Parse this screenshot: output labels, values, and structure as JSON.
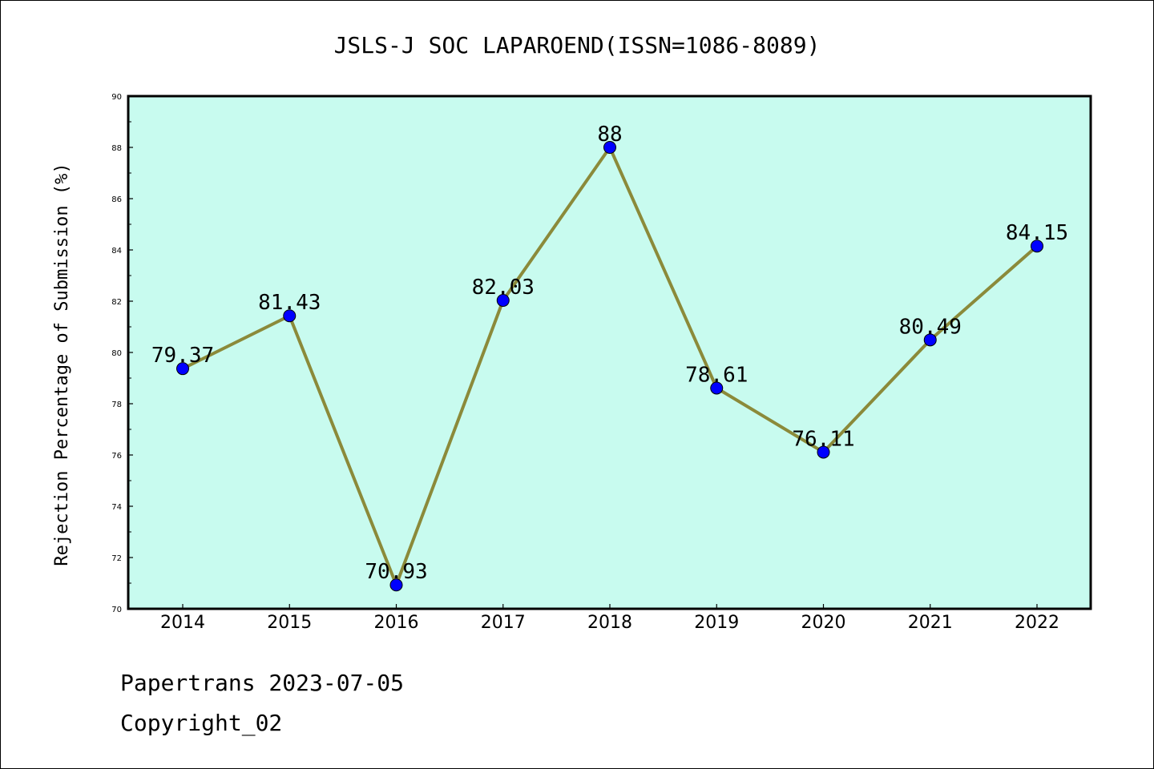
{
  "colors": {
    "plot_background": "#c8fbef",
    "line": "#8b8a3a",
    "marker": "#0000ff",
    "text": "#000000"
  },
  "footer": {
    "line1": "Papertrans 2023-07-05",
    "line2": "Copyright_02"
  },
  "chart_data": {
    "type": "line",
    "title": "JSLS-J SOC LAPAROEND(ISSN=1086-8089)",
    "xlabel": "",
    "ylabel": "Rejection Percentage of Submission (%)",
    "categories": [
      "2014",
      "2015",
      "2016",
      "2017",
      "2018",
      "2019",
      "2020",
      "2021",
      "2022"
    ],
    "series": [
      {
        "values": [
          79.37,
          81.43,
          70.93,
          82.03,
          88,
          78.61,
          76.11,
          80.49,
          84.15
        ],
        "labels": [
          "79.37",
          "81.43",
          "70.93",
          "82.03",
          "88",
          "78.61",
          "76.11",
          "80.49",
          "84.15"
        ]
      }
    ],
    "ylim": [
      70,
      90
    ],
    "yticks": [
      70,
      72,
      74,
      76,
      78,
      80,
      82,
      84,
      86,
      88,
      90
    ],
    "grid": false,
    "legend": "none"
  }
}
